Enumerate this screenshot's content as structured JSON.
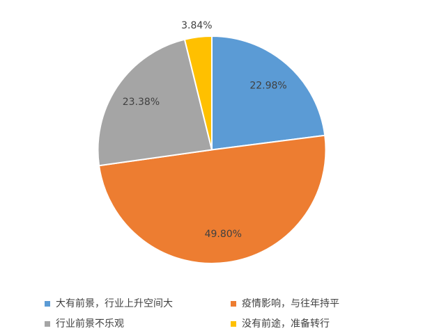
{
  "chart_data": {
    "type": "pie",
    "categories": [
      "大有前景，行业上升空间大",
      "疫情影响，与往年持平",
      "行业前景不乐观",
      "没有前途，准备转行"
    ],
    "values": [
      22.98,
      49.8,
      23.38,
      3.84
    ],
    "value_labels": [
      "22.98%",
      "49.80%",
      "23.38%",
      "3.84%"
    ],
    "colors": [
      "#5b9bd5",
      "#ed7d31",
      "#a5a5a5",
      "#ffc000"
    ],
    "legend": "bottom"
  }
}
